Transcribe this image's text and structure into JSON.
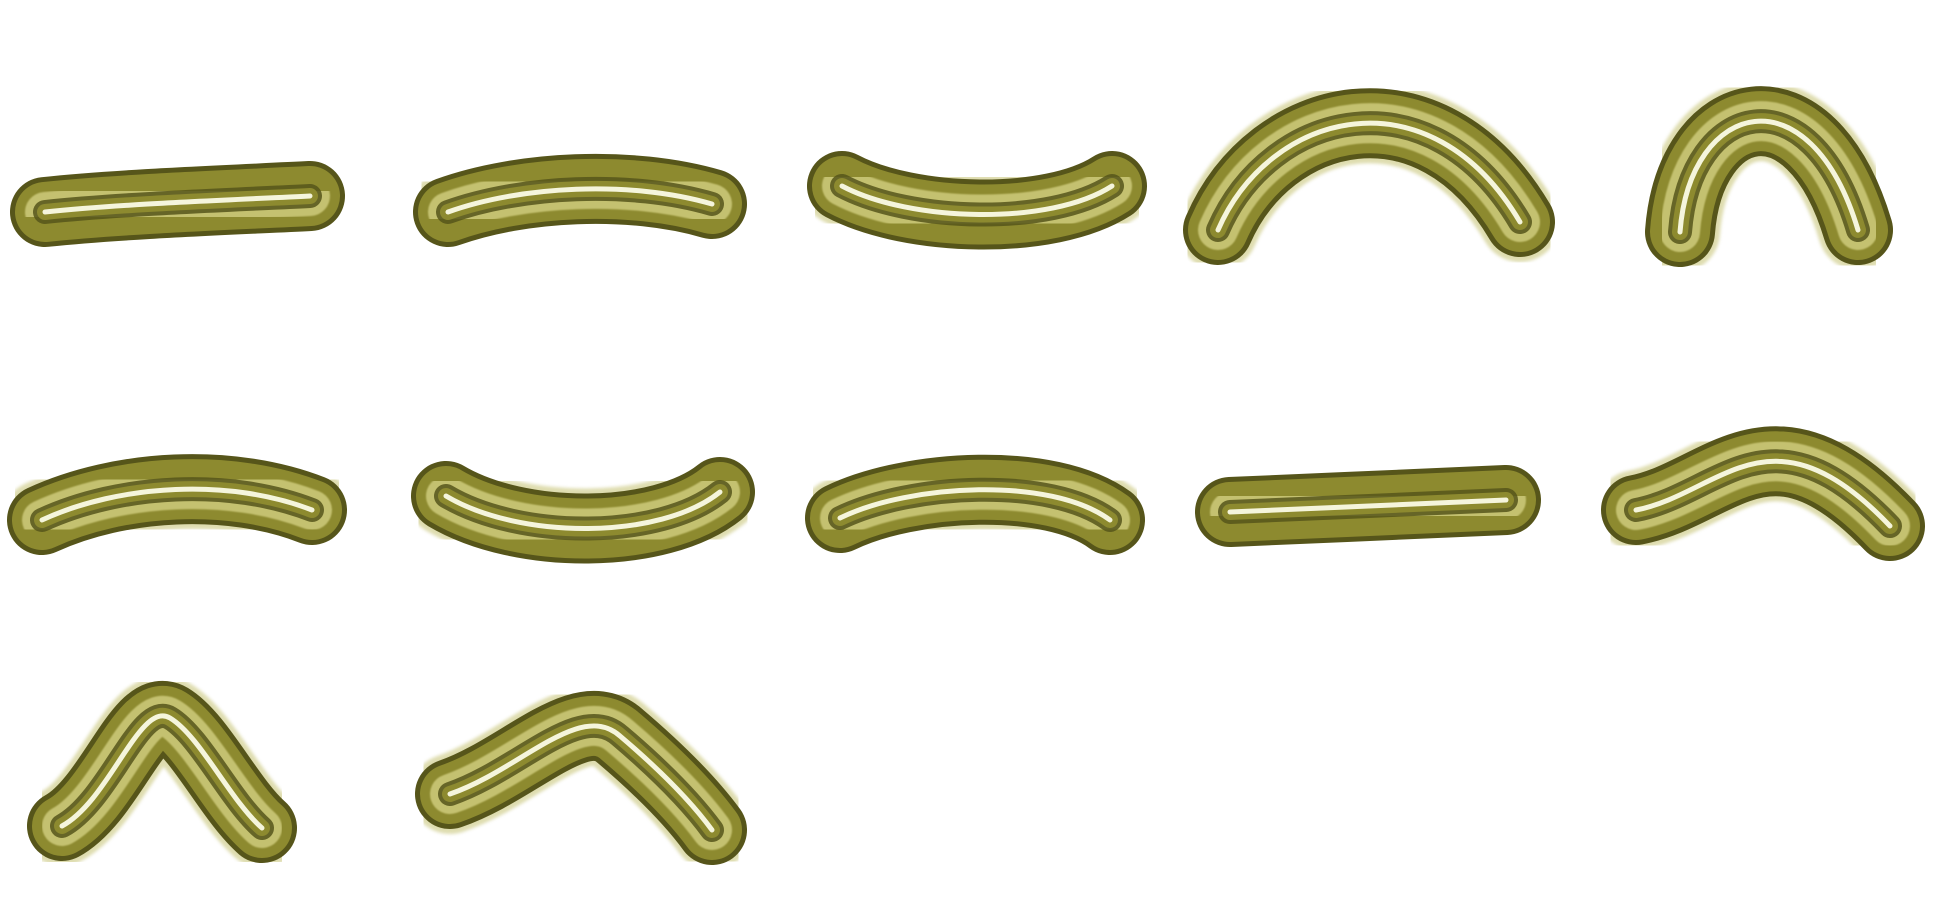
{
  "sprite_sheet": {
    "background": "#ffffff",
    "palette": {
      "dark": "#56551a",
      "body": "#8d8a2f",
      "light": "#c4c170",
      "highlight": "#fbfbe6"
    },
    "frames": [
      {
        "name": "sprite-frame-straight",
        "pose": "straight"
      },
      {
        "name": "sprite-frame-gentle-arch",
        "pose": "gentle-arch"
      },
      {
        "name": "sprite-frame-sag",
        "pose": "sag"
      },
      {
        "name": "sprite-frame-wide-arch",
        "pose": "wide-arch"
      },
      {
        "name": "sprite-frame-narrow-arch",
        "pose": "narrow-arch"
      },
      {
        "name": "sprite-frame-slight-arch",
        "pose": "slight-arch"
      },
      {
        "name": "sprite-frame-deep-sag",
        "pose": "deep-sag"
      },
      {
        "name": "sprite-frame-slight-arch-2",
        "pose": "slight-arch"
      },
      {
        "name": "sprite-frame-straight-2",
        "pose": "straight"
      },
      {
        "name": "sprite-frame-right-hump",
        "pose": "right-hump"
      },
      {
        "name": "sprite-frame-peak",
        "pose": "peak"
      },
      {
        "name": "sprite-frame-center-hump",
        "pose": "center-hump"
      }
    ]
  }
}
